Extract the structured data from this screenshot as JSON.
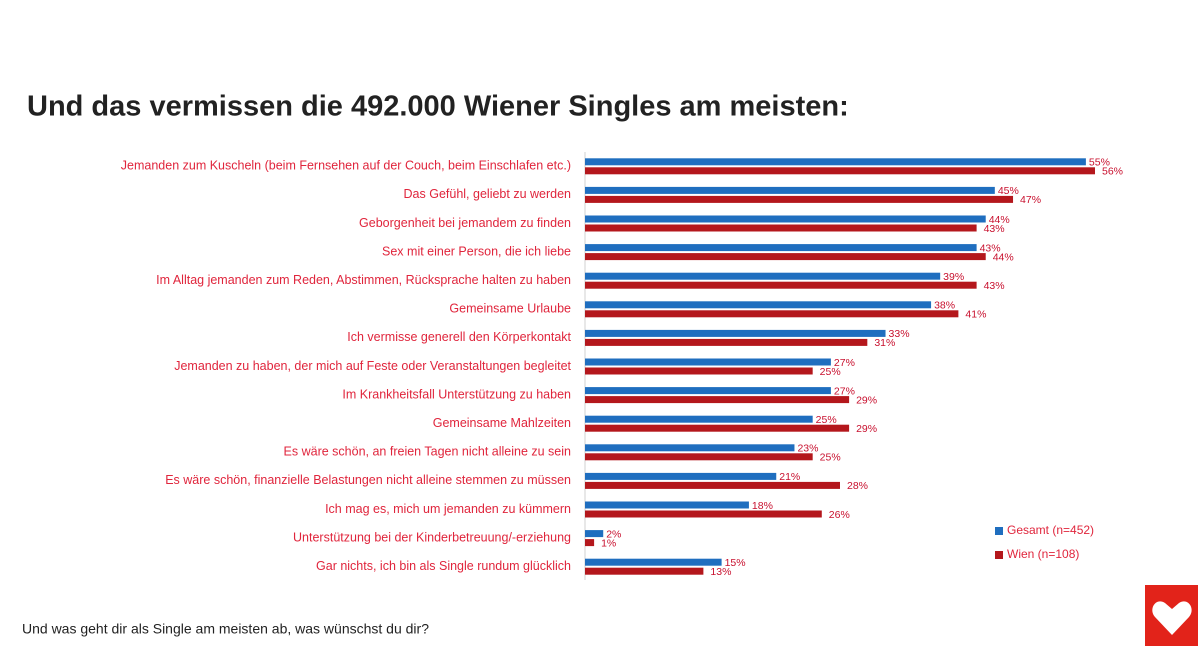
{
  "chart_data": {
    "type": "hbar",
    "title": "Und das vermissen die 492.000 Wiener Singles am meisten:",
    "caption": "Und was geht dir als Single am meisten ab, was wünschst du dir?",
    "categories": [
      "Jemanden zum Kuscheln (beim Fernsehen auf der Couch, beim Einschlafen etc.)",
      "Das Gefühl, geliebt zu werden",
      "Geborgenheit bei jemandem zu finden",
      "Sex mit einer Person, die ich liebe",
      "Im Alltag jemanden zum Reden, Abstimmen, Rücksprache halten zu haben",
      "Gemeinsame Urlaube",
      "Ich vermisse generell den Körperkontakt",
      "Jemanden zu haben, der mich auf Feste oder Veranstaltungen begleitet",
      "Im Krankheitsfall Unterstützung zu haben",
      "Gemeinsame Mahlzeiten",
      "Es wäre schön, an freien Tagen nicht alleine zu sein",
      "Es wäre schön, finanzielle Belastungen nicht alleine stemmen zu müssen",
      "Ich mag es, mich um jemanden zu kümmern",
      "Unterstützung bei der Kinderbetreuung/-erziehung",
      "Gar nichts, ich bin als Single rundum glücklich"
    ],
    "series": [
      {
        "name": "Gesamt (n=452)",
        "color": "#1f6ebf",
        "values": [
          55,
          45,
          44,
          43,
          39,
          38,
          33,
          27,
          27,
          25,
          23,
          21,
          18,
          2,
          15
        ],
        "value_labels": [
          "55%",
          "45%",
          "44%",
          "43%",
          "39%",
          "38%",
          "33%",
          "27%",
          "27%",
          "25%",
          "23%",
          "21%",
          "18%",
          "2%",
          "15%"
        ]
      },
      {
        "name": "Wien (n=108)",
        "color": "#b4171c",
        "values": [
          56,
          47,
          43,
          44,
          43,
          41,
          31,
          25,
          29,
          29,
          25,
          28,
          26,
          1,
          13
        ],
        "value_labels": [
          "56%",
          "47%",
          "43%",
          "44%",
          "43%",
          "41%",
          "31%",
          "25%",
          "29%",
          "29%",
          "25%",
          "28%",
          "26%",
          "1%",
          "13%"
        ]
      }
    ],
    "legend": "bottom-right"
  }
}
